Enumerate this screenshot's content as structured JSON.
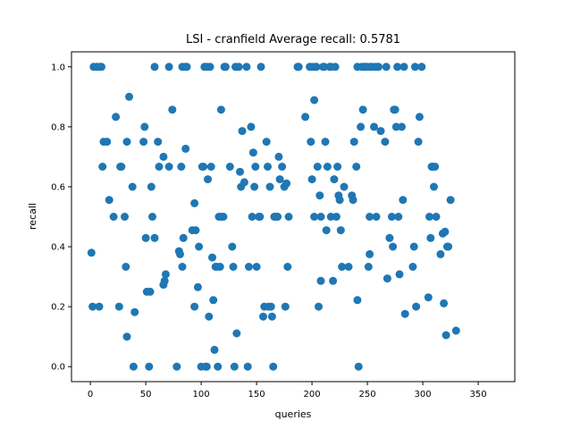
{
  "chart_data": {
    "type": "scatter",
    "title": "LSI - cranfield  Average recall: 0.5781",
    "xlabel": "queries",
    "ylabel": "recall",
    "xlim": [
      -17,
      383
    ],
    "ylim": [
      -0.05,
      1.05
    ],
    "xticks": [
      "0",
      "50",
      "100",
      "150",
      "200",
      "250",
      "300",
      "350"
    ],
    "yticks": [
      "0.0",
      "0.2",
      "0.4",
      "0.6",
      "0.8",
      "1.0"
    ],
    "grid": false,
    "legend": "none",
    "color": "#1f77b4",
    "points": [
      [
        1,
        0.38
      ],
      [
        2,
        0.2
      ],
      [
        3,
        1.0
      ],
      [
        6,
        1.0
      ],
      [
        8,
        0.2
      ],
      [
        9,
        1.0
      ],
      [
        10,
        1.0
      ],
      [
        11,
        0.667
      ],
      [
        12,
        0.75
      ],
      [
        15,
        0.75
      ],
      [
        17,
        0.556
      ],
      [
        21,
        0.5
      ],
      [
        23,
        0.833
      ],
      [
        26,
        0.2
      ],
      [
        27,
        0.667
      ],
      [
        28,
        0.667
      ],
      [
        31,
        0.5
      ],
      [
        32,
        0.333
      ],
      [
        33,
        0.75
      ],
      [
        33,
        0.1
      ],
      [
        35,
        0.9
      ],
      [
        38,
        0.6
      ],
      [
        39,
        0.0
      ],
      [
        40,
        0.182
      ],
      [
        48,
        0.75
      ],
      [
        49,
        0.8
      ],
      [
        50,
        0.429
      ],
      [
        51,
        0.25
      ],
      [
        53,
        0.0
      ],
      [
        54,
        0.25
      ],
      [
        55,
        0.6
      ],
      [
        56,
        0.5
      ],
      [
        58,
        0.429
      ],
      [
        58,
        1.0
      ],
      [
        61,
        0.75
      ],
      [
        62,
        0.667
      ],
      [
        66,
        0.7
      ],
      [
        66,
        0.273
      ],
      [
        67,
        0.286
      ],
      [
        68,
        0.308
      ],
      [
        71,
        0.667
      ],
      [
        71,
        1.0
      ],
      [
        74,
        0.857
      ],
      [
        78,
        0.0
      ],
      [
        80,
        0.385
      ],
      [
        81,
        0.375
      ],
      [
        82,
        0.667
      ],
      [
        83,
        0.333
      ],
      [
        83,
        1.0
      ],
      [
        84,
        0.429
      ],
      [
        86,
        0.727
      ],
      [
        86,
        1.0
      ],
      [
        87,
        1.0
      ],
      [
        92,
        0.455
      ],
      [
        94,
        0.2
      ],
      [
        94,
        0.545
      ],
      [
        95,
        0.455
      ],
      [
        97,
        0.265
      ],
      [
        98,
        0.4
      ],
      [
        100,
        0.0
      ],
      [
        101,
        0.667
      ],
      [
        102,
        0.667
      ],
      [
        103,
        1.0
      ],
      [
        104,
        0.0
      ],
      [
        105,
        0.0
      ],
      [
        105,
        1.0
      ],
      [
        106,
        0.625
      ],
      [
        107,
        0.167
      ],
      [
        108,
        1.0
      ],
      [
        109,
        0.667
      ],
      [
        110,
        0.364
      ],
      [
        111,
        0.222
      ],
      [
        112,
        0.056
      ],
      [
        113,
        0.333
      ],
      [
        114,
        0.333
      ],
      [
        115,
        0.0
      ],
      [
        116,
        0.5
      ],
      [
        117,
        0.333
      ],
      [
        118,
        0.857
      ],
      [
        118,
        0.5
      ],
      [
        120,
        0.5
      ],
      [
        121,
        1.0
      ],
      [
        122,
        1.0
      ],
      [
        126,
        0.667
      ],
      [
        128,
        0.4
      ],
      [
        129,
        0.333
      ],
      [
        130,
        0.0
      ],
      [
        131,
        1.0
      ],
      [
        132,
        0.111
      ],
      [
        134,
        1.0
      ],
      [
        135,
        0.65
      ],
      [
        136,
        0.6
      ],
      [
        137,
        0.786
      ],
      [
        139,
        0.615
      ],
      [
        141,
        1.0
      ],
      [
        142,
        0.0
      ],
      [
        143,
        0.333
      ],
      [
        145,
        0.8
      ],
      [
        146,
        0.5
      ],
      [
        147,
        0.714
      ],
      [
        148,
        0.6
      ],
      [
        149,
        0.667
      ],
      [
        150,
        0.333
      ],
      [
        152,
        0.5
      ],
      [
        153,
        0.5
      ],
      [
        154,
        1.0
      ],
      [
        156,
        0.167
      ],
      [
        157,
        0.2
      ],
      [
        159,
        0.75
      ],
      [
        160,
        0.667
      ],
      [
        161,
        0.2
      ],
      [
        162,
        0.6
      ],
      [
        163,
        0.2
      ],
      [
        164,
        0.167
      ],
      [
        165,
        0.0
      ],
      [
        166,
        0.5
      ],
      [
        167,
        0.5
      ],
      [
        169,
        0.5
      ],
      [
        170,
        0.7
      ],
      [
        171,
        0.625
      ],
      [
        173,
        0.667
      ],
      [
        175,
        0.6
      ],
      [
        176,
        0.2
      ],
      [
        177,
        0.611
      ],
      [
        178,
        0.333
      ],
      [
        179,
        0.5
      ],
      [
        187,
        1.0
      ],
      [
        188,
        1.0
      ],
      [
        194,
        0.833
      ],
      [
        198,
        1.0
      ],
      [
        199,
        0.75
      ],
      [
        200,
        0.625
      ],
      [
        200,
        1.0
      ],
      [
        202,
        0.5
      ],
      [
        202,
        0.889
      ],
      [
        203,
        1.0
      ],
      [
        204,
        1.0
      ],
      [
        205,
        0.667
      ],
      [
        206,
        0.2
      ],
      [
        207,
        0.571
      ],
      [
        208,
        0.5
      ],
      [
        208,
        0.286
      ],
      [
        210,
        1.0
      ],
      [
        211,
        1.0
      ],
      [
        212,
        0.75
      ],
      [
        213,
        0.455
      ],
      [
        214,
        0.667
      ],
      [
        216,
        1.0
      ],
      [
        217,
        0.5
      ],
      [
        217,
        1.0
      ],
      [
        219,
        0.286
      ],
      [
        220,
        0.625
      ],
      [
        221,
        1.0
      ],
      [
        222,
        0.5
      ],
      [
        223,
        0.667
      ],
      [
        224,
        0.571
      ],
      [
        225,
        0.556
      ],
      [
        226,
        0.455
      ],
      [
        227,
        0.333
      ],
      [
        229,
        0.6
      ],
      [
        233,
        0.333
      ],
      [
        236,
        0.571
      ],
      [
        237,
        0.556
      ],
      [
        238,
        0.75
      ],
      [
        240,
        0.667
      ],
      [
        241,
        0.222
      ],
      [
        241,
        1.0
      ],
      [
        242,
        0.0
      ],
      [
        244,
        0.8
      ],
      [
        245,
        1.0
      ],
      [
        246,
        0.857
      ],
      [
        247,
        1.0
      ],
      [
        248,
        1.0
      ],
      [
        250,
        1.0
      ],
      [
        251,
        0.333
      ],
      [
        252,
        0.375
      ],
      [
        252,
        0.5
      ],
      [
        253,
        1.0
      ],
      [
        254,
        1.0
      ],
      [
        256,
        0.8
      ],
      [
        257,
        1.0
      ],
      [
        258,
        0.5
      ],
      [
        259,
        1.0
      ],
      [
        260,
        1.0
      ],
      [
        262,
        0.786
      ],
      [
        266,
        0.75
      ],
      [
        267,
        1.0
      ],
      [
        268,
        0.294
      ],
      [
        270,
        0.429
      ],
      [
        272,
        0.5
      ],
      [
        273,
        0.4
      ],
      [
        274,
        0.857
      ],
      [
        275,
        0.857
      ],
      [
        276,
        0.8
      ],
      [
        277,
        1.0
      ],
      [
        278,
        0.5
      ],
      [
        279,
        0.308
      ],
      [
        281,
        0.8
      ],
      [
        282,
        0.556
      ],
      [
        283,
        1.0
      ],
      [
        284,
        0.176
      ],
      [
        291,
        0.333
      ],
      [
        292,
        0.4
      ],
      [
        293,
        1.0
      ],
      [
        294,
        0.2
      ],
      [
        296,
        0.75
      ],
      [
        297,
        0.833
      ],
      [
        299,
        1.0
      ],
      [
        305,
        0.231
      ],
      [
        306,
        0.5
      ],
      [
        307,
        0.429
      ],
      [
        308,
        0.667
      ],
      [
        309,
        0.667
      ],
      [
        310,
        0.6
      ],
      [
        311,
        0.667
      ],
      [
        312,
        0.5
      ],
      [
        316,
        0.375
      ],
      [
        318,
        0.444
      ],
      [
        319,
        0.211
      ],
      [
        320,
        0.45
      ],
      [
        321,
        0.105
      ],
      [
        322,
        0.4
      ],
      [
        323,
        0.4
      ],
      [
        325,
        0.556
      ],
      [
        330,
        0.12
      ]
    ]
  }
}
